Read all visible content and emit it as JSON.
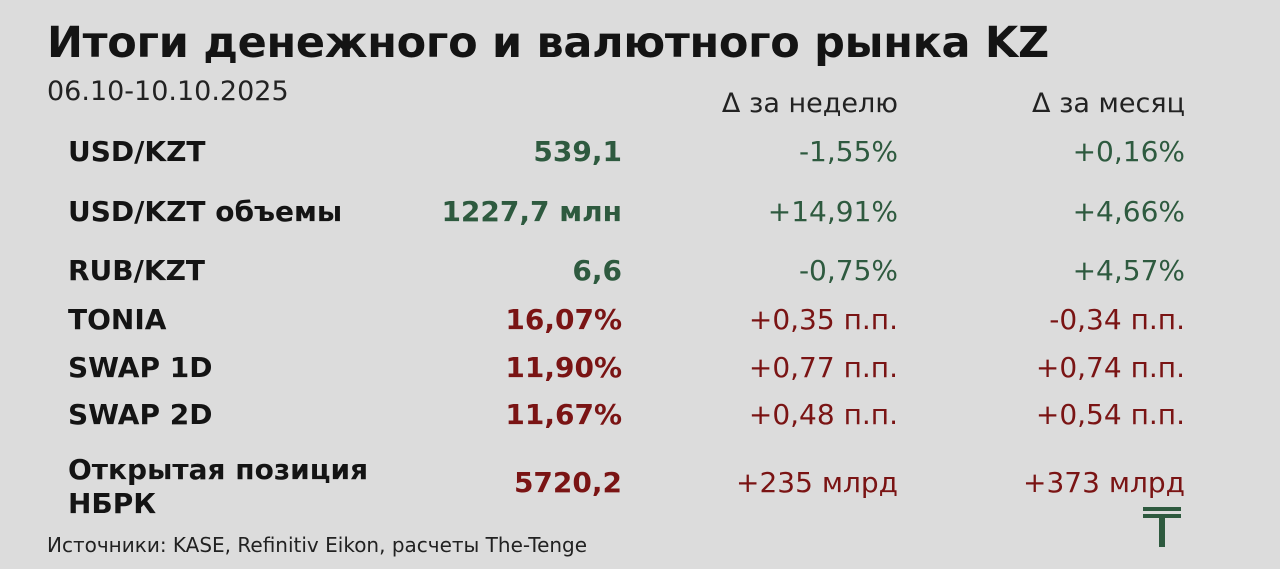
{
  "header": {
    "title": "Итоги денежного и валютного рынка KZ",
    "date_range": "06.10-10.10.2025"
  },
  "columns": {
    "week": "Δ за неделю",
    "month": "Δ за месяц"
  },
  "rows": [
    {
      "label": "USD/KZT",
      "value": "539,1",
      "week": "-1,55%",
      "month": "+0,16%",
      "color": "#2e5a3f"
    },
    {
      "label": "USD/KZT объемы",
      "value": "1227,7 млн",
      "week": "+14,91%",
      "month": "+4,66%",
      "color": "#2e5a3f"
    },
    {
      "label": "RUB/KZT",
      "value": "6,6",
      "week": "-0,75%",
      "month": "+4,57%",
      "color": "#2e5a3f"
    },
    {
      "label": "TONIA",
      "value": "16,07%",
      "week": "+0,35 п.п.",
      "month": "-0,34 п.п.",
      "color": "#7a1414"
    },
    {
      "label": "SWAP 1D",
      "value": "11,90%",
      "week": "+0,77 п.п.",
      "month": "+0,74 п.п.",
      "color": "#7a1414"
    },
    {
      "label": "SWAP 2D",
      "value": "11,67%",
      "week": "+0,48 п.п.",
      "month": "+0,54 п.п.",
      "color": "#7a1414"
    },
    {
      "label": "Открытая позиция НБРК",
      "value": "5720,2",
      "week": "+235 млрд",
      "month": "+373 млрд",
      "color": "#7a1414"
    }
  ],
  "footer": {
    "source": "Источники: KASE, Refinitiv Eikon, расчеты The-Tenge",
    "logo_icon": "the-tenge-logo",
    "logo_color": "#2e5a3f"
  }
}
